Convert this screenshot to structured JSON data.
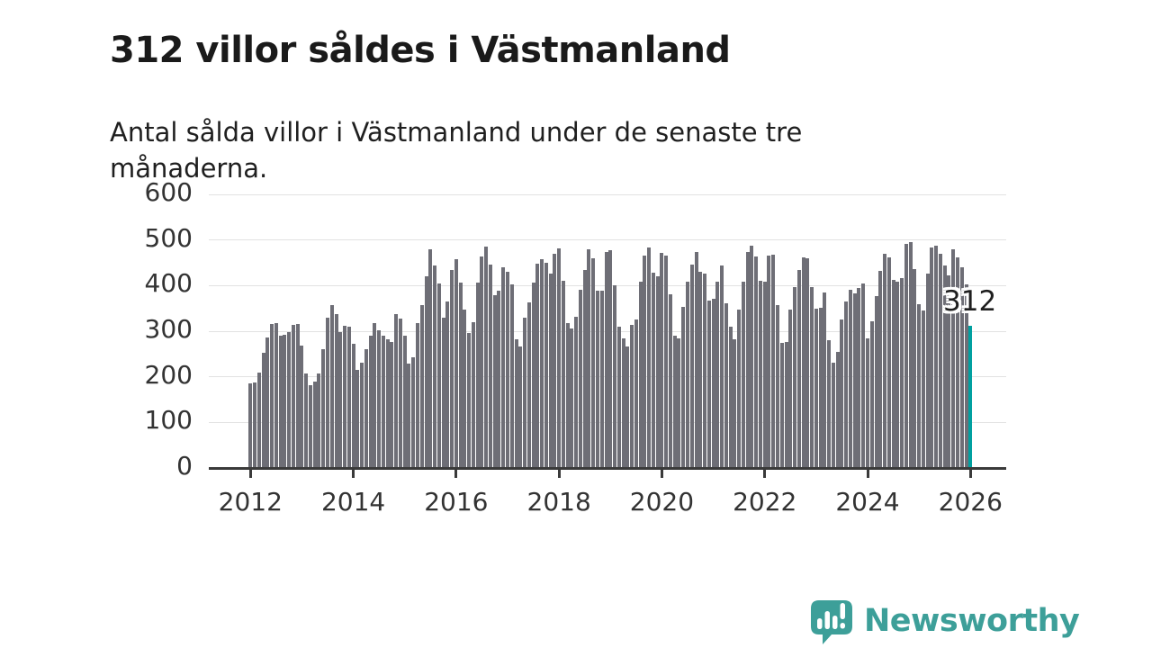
{
  "header": {
    "title": "312 villor såldes i Västmanland",
    "subtitle": "Antal sålda villor i Västmanland under de senaste tre månaderna."
  },
  "chart_data": {
    "type": "bar",
    "title": "312 villor såldes i Västmanland",
    "subtitle": "Antal sålda villor i Västmanland under de senaste tre månaderna.",
    "x_start": "2012-01",
    "frequency": "monthly",
    "xlabel": "",
    "ylabel": "",
    "ylim": [
      0,
      600
    ],
    "y_ticks": [
      0,
      100,
      200,
      300,
      400,
      500,
      600
    ],
    "x_tick_labels": [
      "2012",
      "2014",
      "2016",
      "2018",
      "2020",
      "2022",
      "2024",
      "2026"
    ],
    "grid": true,
    "bar_color": "#6e6e76",
    "values": [
      185,
      188,
      210,
      252,
      287,
      315,
      318,
      290,
      292,
      298,
      313,
      316,
      268,
      208,
      182,
      190,
      208,
      260,
      330,
      358,
      337,
      299,
      312,
      309,
      272,
      215,
      230,
      260,
      291,
      317,
      301,
      290,
      283,
      276,
      338,
      327,
      290,
      228,
      243,
      317,
      358,
      421,
      479,
      445,
      404,
      330,
      366,
      434,
      457,
      406,
      347,
      297,
      319,
      407,
      463,
      485,
      446,
      378,
      389,
      441,
      430,
      403,
      283,
      267,
      329,
      364,
      406,
      449,
      457,
      450,
      426,
      469,
      482,
      411,
      318,
      305,
      331,
      391,
      434,
      479,
      459,
      388,
      388,
      474,
      477,
      401,
      310,
      284,
      267,
      313,
      325,
      409,
      465,
      483,
      429,
      421,
      472,
      465,
      380,
      290,
      284,
      353,
      408,
      446,
      474,
      430,
      426,
      368,
      371,
      409,
      444,
      362,
      310,
      283,
      347,
      408,
      474,
      487,
      463,
      411,
      408,
      465,
      467,
      358,
      274,
      277,
      347,
      397,
      434,
      462,
      459,
      397,
      350,
      351,
      384,
      280,
      231,
      255,
      326,
      366,
      390,
      383,
      395,
      405,
      285,
      322,
      376,
      432,
      469,
      461,
      413,
      409,
      417,
      492,
      496,
      437,
      360,
      345,
      426,
      483,
      487,
      469,
      445,
      422,
      479,
      462,
      440,
      402
    ],
    "highlight": {
      "label": "312",
      "value": 312,
      "position": "2026-01",
      "color": "#00a0a0"
    }
  },
  "footer": {
    "brand": "Newsworthy",
    "brand_color": "#3d9f99"
  }
}
